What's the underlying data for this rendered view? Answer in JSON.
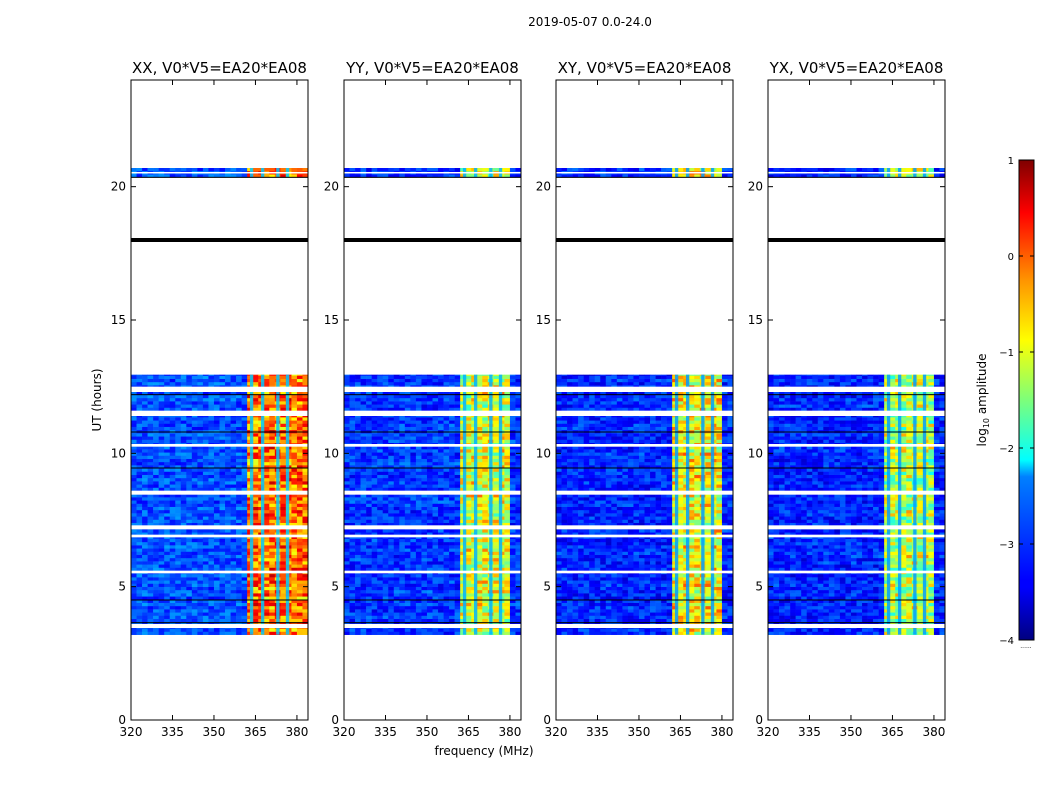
{
  "figure": {
    "suptitle": "2019-05-07 0.0-24.0",
    "xlabel": "frequency (MHz)",
    "ylabel": "UT (hours)",
    "colorbar_label_prefix": "log",
    "colorbar_label_sub": "10",
    "colorbar_label_suffix": " amplitude",
    "colorbar_dots": "......"
  },
  "colors": {
    "background": "#ffffff",
    "axis": "#000000",
    "gap_line": "#000000",
    "empty_row": "#ffffff"
  },
  "chart_data": {
    "type": "heatmap",
    "colormap": "jet",
    "x_range": [
      320,
      384
    ],
    "y_range": [
      0,
      24
    ],
    "x_ticks": [
      320,
      335,
      350,
      365,
      380
    ],
    "x_tick_labels": [
      "320",
      "335",
      "350",
      "365",
      "380"
    ],
    "y_ticks": [
      0,
      5,
      10,
      15,
      20
    ],
    "y_tick_labels": [
      "0",
      "5",
      "10",
      "15",
      "20"
    ],
    "color_range": [
      -4,
      1
    ],
    "colorbar_ticks": [
      -4,
      -3,
      -2,
      -1,
      0,
      1
    ],
    "colorbar_tick_labels": [
      "−4",
      "−3",
      "−2",
      "−1",
      "0",
      "1"
    ],
    "data_time_ranges": [
      [
        3.2,
        12.95
      ],
      [
        20.35,
        20.7
      ]
    ],
    "blank_time_ranges": [
      [
        12.3,
        12.5
      ],
      [
        11.4,
        11.6
      ],
      [
        7.15,
        7.3
      ],
      [
        8.45,
        8.6
      ],
      [
        10.25,
        10.35
      ],
      [
        6.85,
        6.95
      ],
      [
        5.5,
        5.6
      ],
      [
        3.45,
        3.6
      ],
      [
        20.5,
        20.55
      ]
    ],
    "dark_lines_ut": [
      18.0,
      12.2,
      10.8,
      9.45,
      4.5,
      3.65,
      20.35
    ],
    "bright_band_mhz": [
      360.5,
      380.5
    ],
    "bright_band_dividers_mhz": [
      363,
      367,
      372.5,
      376
    ],
    "panels": [
      {
        "title": "XX, V0*V5=EA20*EA08",
        "background_level": -3.0,
        "band_level": -0.2,
        "band_edge_mhz": 383.8
      },
      {
        "title": "YY, V0*V5=EA20*EA08",
        "background_level": -3.1,
        "band_level": -1.0,
        "band_edge_mhz": 379.5
      },
      {
        "title": "XY, V0*V5=EA20*EA08",
        "background_level": -3.2,
        "band_level": -0.9,
        "band_edge_mhz": 379.5
      },
      {
        "title": "YX, V0*V5=EA20*EA08",
        "background_level": -3.2,
        "band_level": -1.2,
        "band_edge_mhz": 379.5
      }
    ]
  }
}
